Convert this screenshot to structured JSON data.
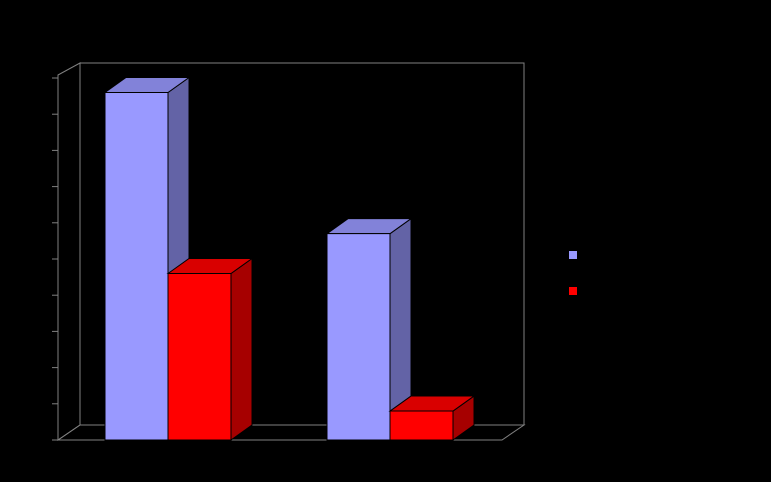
{
  "chart_data": {
    "type": "bar",
    "categories": [
      null,
      null
    ],
    "series": [
      {
        "color": "#9999ff",
        "values": [
          9.6,
          5.7
        ]
      },
      {
        "color": "#ff0000",
        "values": [
          4.6,
          0.8
        ]
      }
    ],
    "ylim": [
      0,
      10
    ],
    "yticks": [
      0,
      1,
      2,
      3,
      4,
      5,
      6,
      7,
      8,
      9,
      10
    ]
  }
}
